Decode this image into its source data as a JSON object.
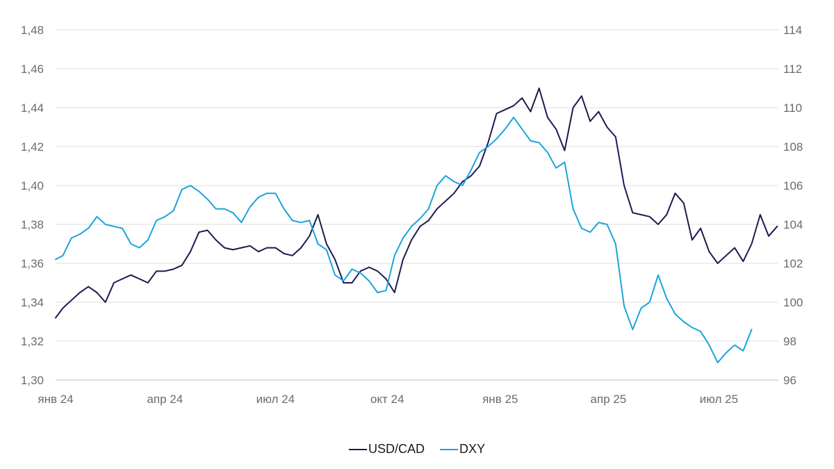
{
  "chart_data": {
    "type": "line",
    "title": "",
    "xlabel": "",
    "ylabel": "",
    "grid": true,
    "legend_position": "bottom-center",
    "x_ticks": [
      "янв 24",
      "апр 24",
      "июл 24",
      "окт 24",
      "янв 25",
      "апр 25",
      "июл 25"
    ],
    "y_left": {
      "range": [
        1.3,
        1.48
      ],
      "ticks": [
        "1,30",
        "1,32",
        "1,34",
        "1,36",
        "1,38",
        "1,40",
        "1,42",
        "1,44",
        "1,46",
        "1,48"
      ]
    },
    "y_right": {
      "range": [
        96,
        114
      ],
      "ticks": [
        "96",
        "98",
        "100",
        "102",
        "104",
        "106",
        "108",
        "110",
        "112",
        "114"
      ]
    },
    "series": [
      {
        "name": "USD/CAD",
        "axis": "left",
        "color": "#1b1a4f",
        "points": [
          [
            "2024-01-02",
            1.332
          ],
          [
            "2024-01-08",
            1.337
          ],
          [
            "2024-01-15",
            1.341
          ],
          [
            "2024-01-22",
            1.345
          ],
          [
            "2024-01-29",
            1.348
          ],
          [
            "2024-02-05",
            1.345
          ],
          [
            "2024-02-12",
            1.34
          ],
          [
            "2024-02-19",
            1.35
          ],
          [
            "2024-02-26",
            1.352
          ],
          [
            "2024-03-04",
            1.354
          ],
          [
            "2024-03-11",
            1.352
          ],
          [
            "2024-03-18",
            1.35
          ],
          [
            "2024-03-25",
            1.356
          ],
          [
            "2024-04-01",
            1.356
          ],
          [
            "2024-04-08",
            1.357
          ],
          [
            "2024-04-15",
            1.359
          ],
          [
            "2024-04-22",
            1.366
          ],
          [
            "2024-04-29",
            1.376
          ],
          [
            "2024-05-06",
            1.377
          ],
          [
            "2024-05-13",
            1.372
          ],
          [
            "2024-05-20",
            1.368
          ],
          [
            "2024-05-27",
            1.367
          ],
          [
            "2024-06-03",
            1.368
          ],
          [
            "2024-06-10",
            1.369
          ],
          [
            "2024-06-17",
            1.366
          ],
          [
            "2024-06-24",
            1.368
          ],
          [
            "2024-07-01",
            1.368
          ],
          [
            "2024-07-08",
            1.365
          ],
          [
            "2024-07-15",
            1.364
          ],
          [
            "2024-07-22",
            1.368
          ],
          [
            "2024-07-29",
            1.374
          ],
          [
            "2024-08-05",
            1.385
          ],
          [
            "2024-08-12",
            1.37
          ],
          [
            "2024-08-19",
            1.362
          ],
          [
            "2024-08-26",
            1.35
          ],
          [
            "2024-09-02",
            1.35
          ],
          [
            "2024-09-09",
            1.356
          ],
          [
            "2024-09-16",
            1.358
          ],
          [
            "2024-09-23",
            1.356
          ],
          [
            "2024-09-30",
            1.352
          ],
          [
            "2024-10-07",
            1.345
          ],
          [
            "2024-10-14",
            1.362
          ],
          [
            "2024-10-21",
            1.372
          ],
          [
            "2024-10-28",
            1.379
          ],
          [
            "2024-11-04",
            1.382
          ],
          [
            "2024-11-11",
            1.388
          ],
          [
            "2024-11-18",
            1.392
          ],
          [
            "2024-11-25",
            1.396
          ],
          [
            "2024-12-02",
            1.402
          ],
          [
            "2024-12-09",
            1.405
          ],
          [
            "2024-12-16",
            1.41
          ],
          [
            "2024-12-23",
            1.422
          ],
          [
            "2024-12-30",
            1.437
          ],
          [
            "2025-01-06",
            1.439
          ],
          [
            "2025-01-13",
            1.441
          ],
          [
            "2025-01-20",
            1.445
          ],
          [
            "2025-01-27",
            1.438
          ],
          [
            "2025-02-03",
            1.45
          ],
          [
            "2025-02-10",
            1.435
          ],
          [
            "2025-02-17",
            1.429
          ],
          [
            "2025-02-24",
            1.418
          ],
          [
            "2025-03-03",
            1.44
          ],
          [
            "2025-03-10",
            1.446
          ],
          [
            "2025-03-17",
            1.433
          ],
          [
            "2025-03-24",
            1.438
          ],
          [
            "2025-03-31",
            1.43
          ],
          [
            "2025-04-07",
            1.425
          ],
          [
            "2025-04-14",
            1.4
          ],
          [
            "2025-04-21",
            1.386
          ],
          [
            "2025-04-28",
            1.385
          ],
          [
            "2025-05-05",
            1.384
          ],
          [
            "2025-05-12",
            1.38
          ],
          [
            "2025-05-19",
            1.385
          ],
          [
            "2025-05-26",
            1.396
          ],
          [
            "2025-06-02",
            1.391
          ],
          [
            "2025-06-09",
            1.372
          ],
          [
            "2025-06-16",
            1.378
          ],
          [
            "2025-06-23",
            1.366
          ],
          [
            "2025-06-30",
            1.36
          ],
          [
            "2025-07-07",
            1.364
          ],
          [
            "2025-07-14",
            1.368
          ],
          [
            "2025-07-21",
            1.361
          ],
          [
            "2025-07-28",
            1.37
          ],
          [
            "2025-08-04",
            1.385
          ],
          [
            "2025-08-11",
            1.374
          ],
          [
            "2025-08-18",
            1.379
          ]
        ]
      },
      {
        "name": "DXY",
        "axis": "right",
        "color": "#1aa3dc",
        "points": [
          [
            "2024-01-02",
            102.2
          ],
          [
            "2024-01-08",
            102.4
          ],
          [
            "2024-01-15",
            103.3
          ],
          [
            "2024-01-22",
            103.5
          ],
          [
            "2024-01-29",
            103.8
          ],
          [
            "2024-02-05",
            104.4
          ],
          [
            "2024-02-12",
            104.0
          ],
          [
            "2024-02-19",
            103.9
          ],
          [
            "2024-02-26",
            103.8
          ],
          [
            "2024-03-04",
            103.0
          ],
          [
            "2024-03-11",
            102.8
          ],
          [
            "2024-03-18",
            103.2
          ],
          [
            "2024-03-25",
            104.2
          ],
          [
            "2024-04-01",
            104.4
          ],
          [
            "2024-04-08",
            104.7
          ],
          [
            "2024-04-15",
            105.8
          ],
          [
            "2024-04-22",
            106.0
          ],
          [
            "2024-04-29",
            105.7
          ],
          [
            "2024-05-06",
            105.3
          ],
          [
            "2024-05-13",
            104.8
          ],
          [
            "2024-05-20",
            104.8
          ],
          [
            "2024-05-27",
            104.6
          ],
          [
            "2024-06-03",
            104.1
          ],
          [
            "2024-06-10",
            104.9
          ],
          [
            "2024-06-17",
            105.4
          ],
          [
            "2024-06-24",
            105.6
          ],
          [
            "2024-07-01",
            105.6
          ],
          [
            "2024-07-08",
            104.8
          ],
          [
            "2024-07-15",
            104.2
          ],
          [
            "2024-07-22",
            104.1
          ],
          [
            "2024-07-29",
            104.2
          ],
          [
            "2024-08-05",
            103.0
          ],
          [
            "2024-08-12",
            102.7
          ],
          [
            "2024-08-19",
            101.4
          ],
          [
            "2024-08-26",
            101.1
          ],
          [
            "2024-09-02",
            101.7
          ],
          [
            "2024-09-09",
            101.5
          ],
          [
            "2024-09-16",
            101.1
          ],
          [
            "2024-09-23",
            100.5
          ],
          [
            "2024-09-30",
            100.6
          ],
          [
            "2024-10-07",
            102.4
          ],
          [
            "2024-10-14",
            103.3
          ],
          [
            "2024-10-21",
            103.9
          ],
          [
            "2024-10-28",
            104.3
          ],
          [
            "2024-11-04",
            104.8
          ],
          [
            "2024-11-11",
            106.0
          ],
          [
            "2024-11-18",
            106.5
          ],
          [
            "2024-11-25",
            106.2
          ],
          [
            "2024-12-02",
            106.0
          ],
          [
            "2024-12-09",
            106.8
          ],
          [
            "2024-12-16",
            107.7
          ],
          [
            "2024-12-23",
            108.0
          ],
          [
            "2024-12-30",
            108.4
          ],
          [
            "2025-01-06",
            108.9
          ],
          [
            "2025-01-13",
            109.5
          ],
          [
            "2025-01-20",
            108.9
          ],
          [
            "2025-01-27",
            108.3
          ],
          [
            "2025-02-03",
            108.2
          ],
          [
            "2025-02-10",
            107.7
          ],
          [
            "2025-02-17",
            106.9
          ],
          [
            "2025-02-24",
            107.2
          ],
          [
            "2025-03-03",
            104.8
          ],
          [
            "2025-03-10",
            103.8
          ],
          [
            "2025-03-17",
            103.6
          ],
          [
            "2025-03-24",
            104.1
          ],
          [
            "2025-03-31",
            104.0
          ],
          [
            "2025-04-07",
            103.0
          ],
          [
            "2025-04-14",
            99.8
          ],
          [
            "2025-04-21",
            98.6
          ],
          [
            "2025-04-28",
            99.7
          ],
          [
            "2025-05-05",
            100.0
          ],
          [
            "2025-05-12",
            101.4
          ],
          [
            "2025-05-19",
            100.2
          ],
          [
            "2025-05-26",
            99.4
          ],
          [
            "2025-06-02",
            99.0
          ],
          [
            "2025-06-09",
            98.7
          ],
          [
            "2025-06-16",
            98.5
          ],
          [
            "2025-06-23",
            97.8
          ],
          [
            "2025-06-30",
            96.9
          ],
          [
            "2025-07-07",
            97.4
          ],
          [
            "2025-07-14",
            97.8
          ],
          [
            "2025-07-21",
            97.5
          ],
          [
            "2025-07-28",
            98.6
          ]
        ]
      }
    ]
  }
}
